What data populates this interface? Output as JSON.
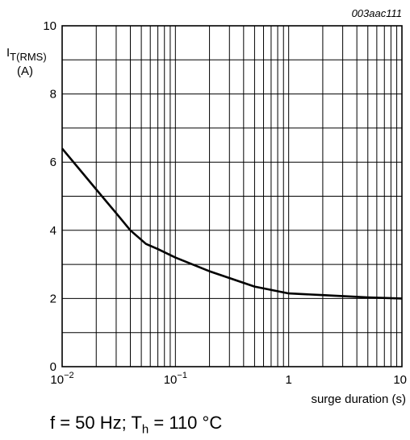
{
  "chart_data": {
    "type": "line",
    "code": "003aac111",
    "ylabel": {
      "symbol": "I",
      "subscript": "T(RMS)",
      "unit": "(A)"
    },
    "xlabel": "surge duration (s)",
    "xscale": "log",
    "xlim": [
      0.01,
      10
    ],
    "ylim": [
      0,
      10
    ],
    "grid": true,
    "y_ticks": [
      "0",
      "2",
      "4",
      "6",
      "8",
      "10"
    ],
    "x_ticks": [
      {
        "value": 0.01,
        "base": "10",
        "exp": "−2"
      },
      {
        "value": 0.1,
        "base": "10",
        "exp": "−1"
      },
      {
        "value": 1,
        "base": "1",
        "exp": ""
      },
      {
        "value": 10,
        "base": "10",
        "exp": ""
      }
    ],
    "series": [
      {
        "x": [
          0.01,
          0.02,
          0.03,
          0.04,
          0.055,
          0.07,
          0.1,
          0.2,
          0.5,
          1,
          2,
          5,
          10
        ],
        "values": [
          6.4,
          5.2,
          4.5,
          4.0,
          3.6,
          3.45,
          3.2,
          2.8,
          2.35,
          2.15,
          2.1,
          2.03,
          2.0
        ]
      }
    ]
  },
  "caption": {
    "prefix": "f = 50 Hz; T",
    "sub": "h",
    "suffix": " = 110 °C"
  }
}
